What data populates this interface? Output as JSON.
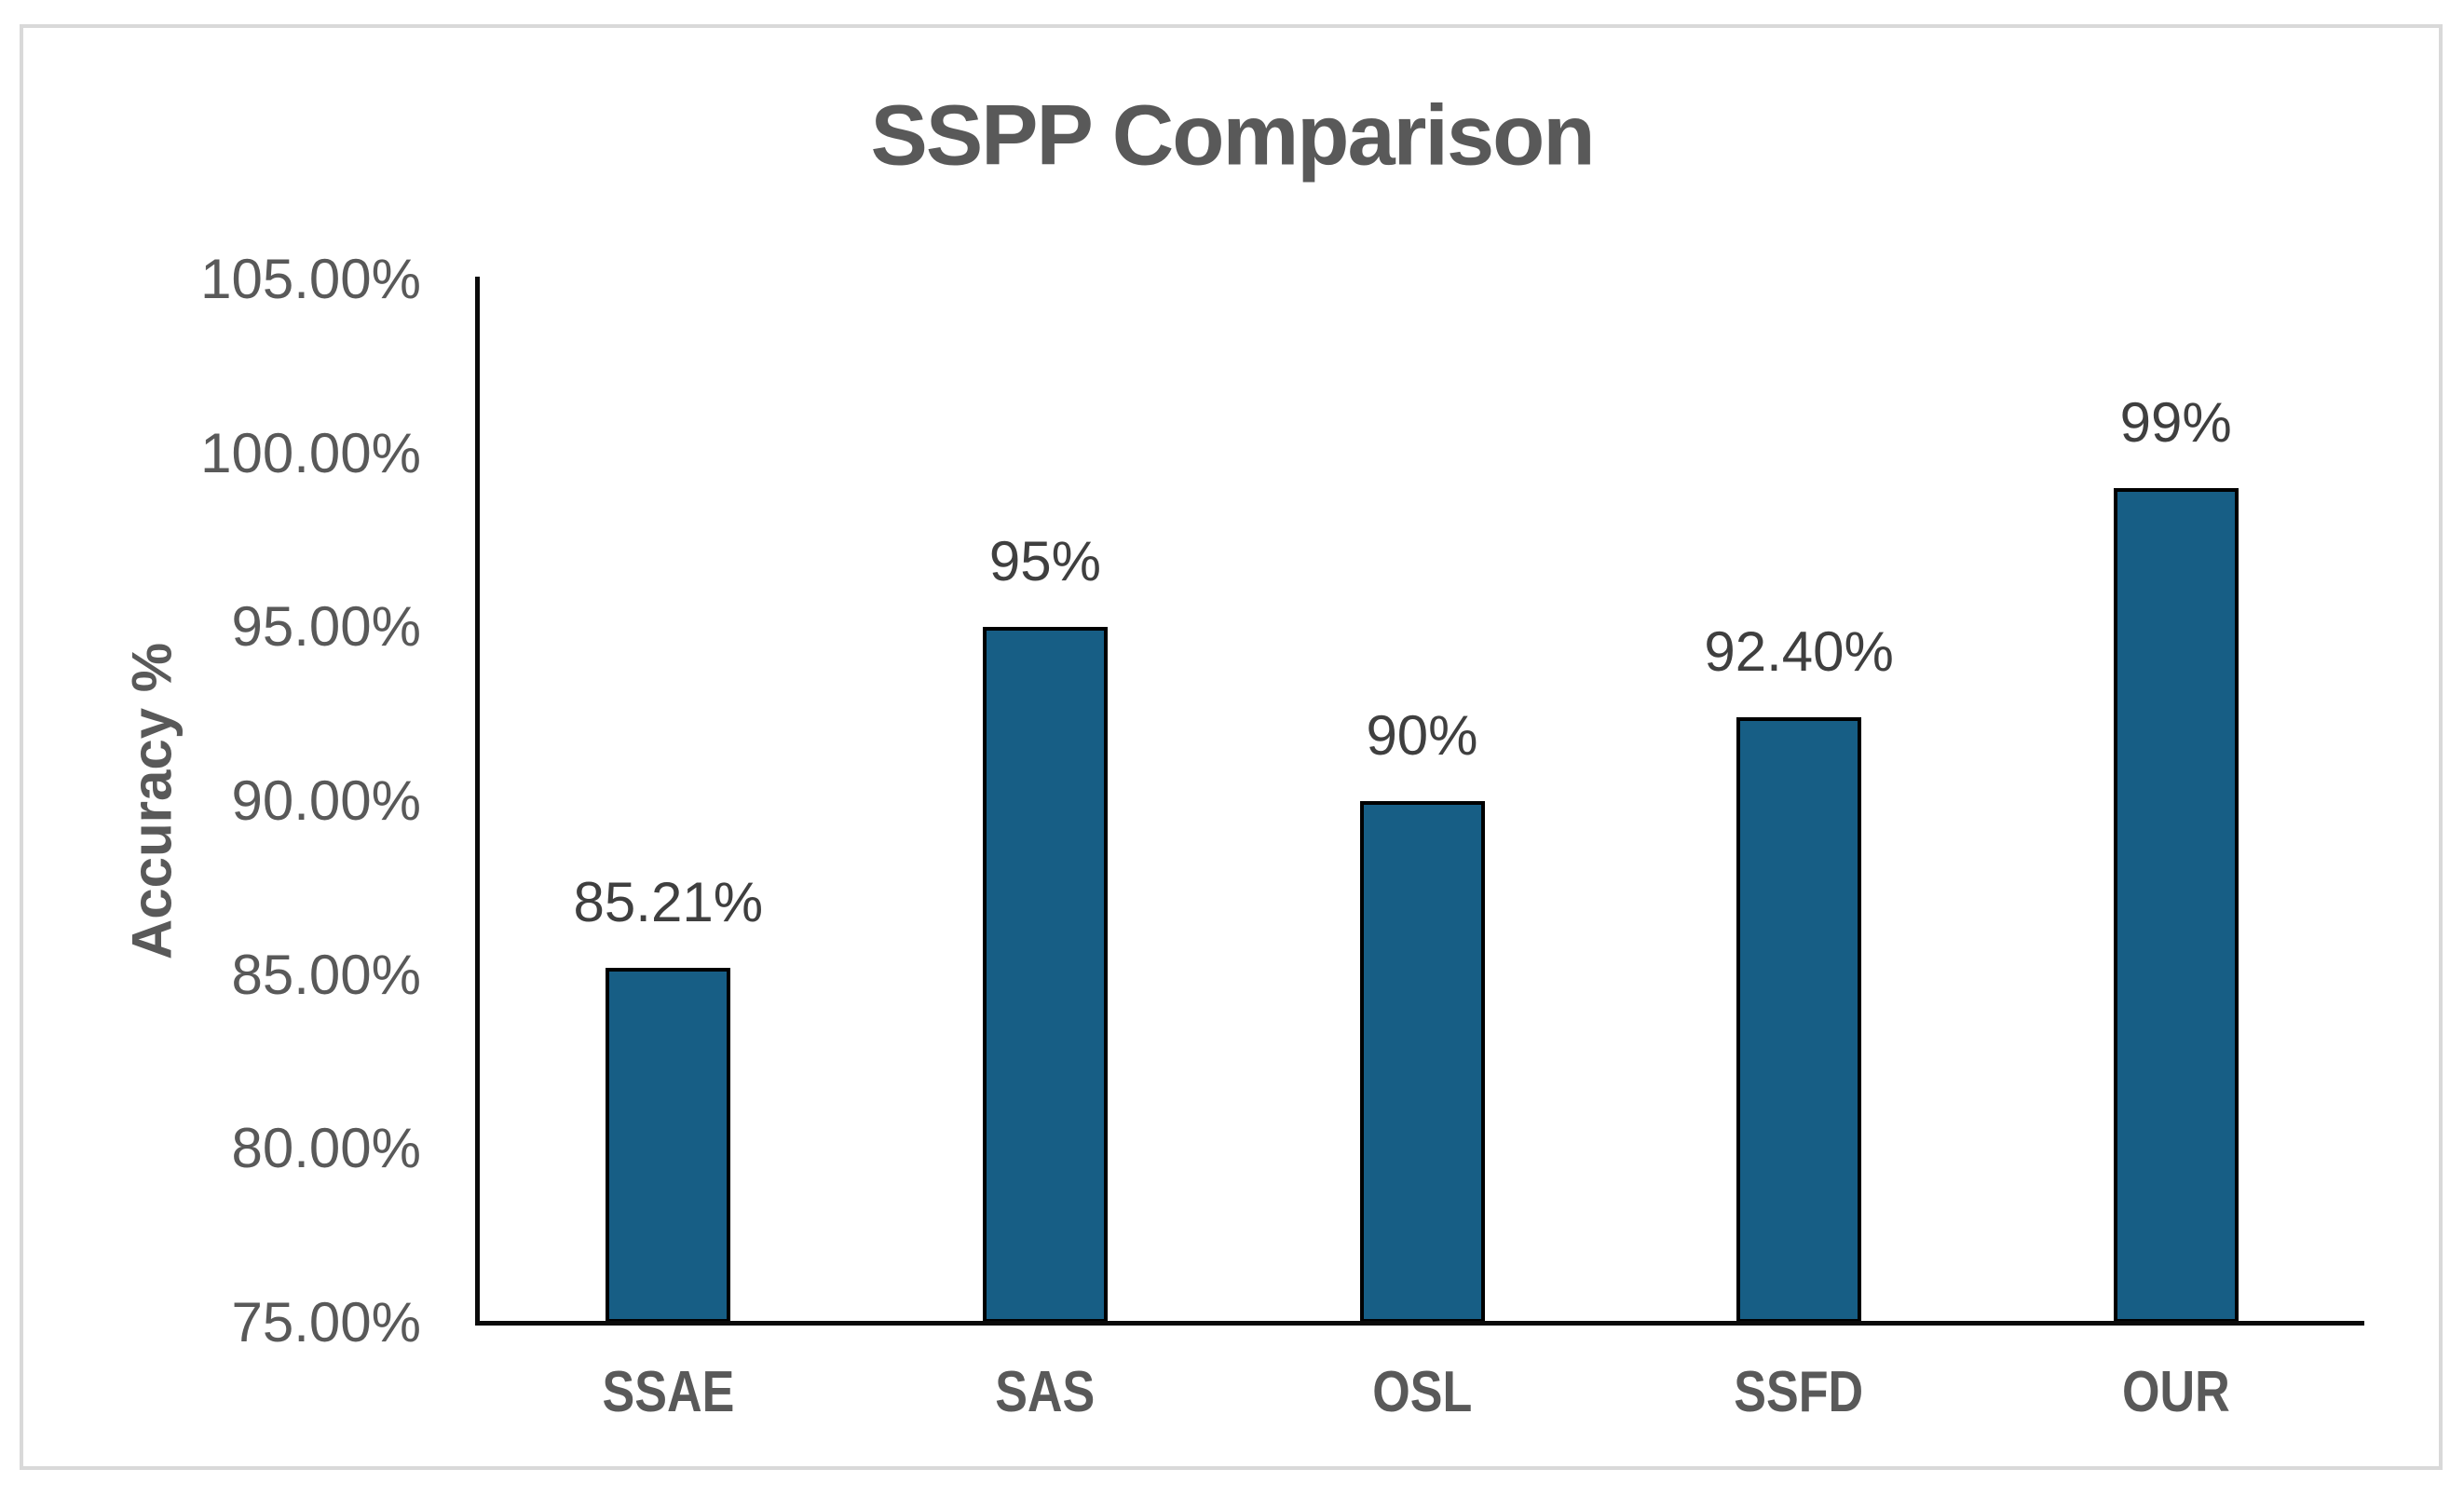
{
  "chart_data": {
    "type": "bar",
    "title": "SSPP Comparison",
    "ylabel": "Accuracy %",
    "xlabel": "",
    "categories": [
      "SSAE",
      "SAS",
      "OSL",
      "SSFD",
      "OUR"
    ],
    "values": [
      85.21,
      95,
      90,
      92.4,
      99
    ],
    "data_labels": [
      "85.21%",
      "95%",
      "90%",
      "92.40%",
      "99%"
    ],
    "ylim": [
      75,
      105
    ],
    "ytick_step": 5,
    "ytick_labels": [
      "105.00%",
      "100.00%",
      "95.00%",
      "90.00%",
      "85.00%",
      "80.00%",
      "75.00%"
    ],
    "grid": false,
    "legend": "none",
    "colors": {
      "bar_fill": "#175E85",
      "bar_border": "#000000",
      "axis_line": "#0B0B0B",
      "tick_text": "#595959",
      "data_label_text": "#3F3F3F",
      "category_text": "#595959",
      "title_text": "#595959",
      "frame_border": "#D9D9D9",
      "background": "#FFFFFF"
    }
  }
}
